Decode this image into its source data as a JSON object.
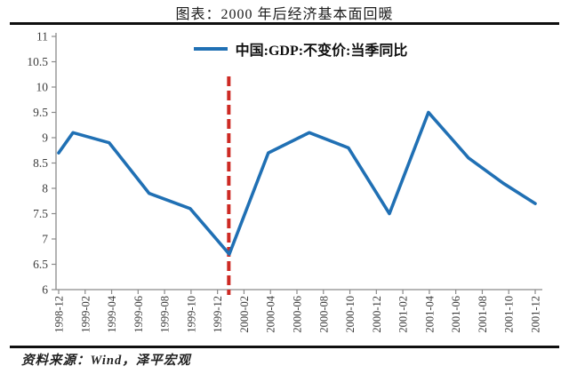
{
  "title": "图表：2000 年后经济基本面回暖",
  "legend": {
    "label": "中国:GDP:不变价:当季同比"
  },
  "source": "资料来源：Wind，泽平宏观",
  "colors": {
    "series_blue": "#2070B4",
    "annotation_red": "#CD2A24",
    "axis_gray": "#8a8a8a",
    "tick_text": "#3d3d3d",
    "rule_black": "#0f0f0f"
  },
  "chart_data": {
    "type": "line",
    "title": "图表：2000 年后经济基本面回暖",
    "xlabel": "",
    "ylabel": "",
    "ylim": [
      6,
      11
    ],
    "grid": false,
    "legend_position": "top-center",
    "y_tick_labels": [
      "11",
      "10.5",
      "10",
      "9.5",
      "9",
      "8.5",
      "8",
      "7.5",
      "7",
      "6.5",
      "6"
    ],
    "x_tick_labels": [
      "1998-12",
      "1999-02",
      "1999-04",
      "1999-06",
      "1999-08",
      "1999-10",
      "1999-12",
      "2000-02",
      "2000-04",
      "2000-06",
      "2000-08",
      "2000-10",
      "2000-12",
      "2001-02",
      "2001-04",
      "2001-06",
      "2001-08",
      "2001-10",
      "2001-12"
    ],
    "series": [
      {
        "name": "中国:GDP:不变价:当季同比",
        "color": "#2070B4",
        "points": [
          {
            "date": "",
            "value": 8.7,
            "f": 0.0
          },
          {
            "date": "1998-12",
            "value": 9.1,
            "f": 0.03
          },
          {
            "date": "1999-03",
            "value": 8.9,
            "f": 0.106
          },
          {
            "date": "1999-06",
            "value": 7.9,
            "f": 0.19
          },
          {
            "date": "1999-09",
            "value": 7.6,
            "f": 0.276
          },
          {
            "date": "1999-12",
            "value": 6.7,
            "f": 0.358
          },
          {
            "date": "2000-03",
            "value": 8.7,
            "f": 0.44
          },
          {
            "date": "2000-06",
            "value": 9.1,
            "f": 0.526
          },
          {
            "date": "2000-09",
            "value": 8.8,
            "f": 0.608
          },
          {
            "date": "2000-12",
            "value": 7.5,
            "f": 0.694
          },
          {
            "date": "2001-03",
            "value": 9.5,
            "f": 0.776
          },
          {
            "date": "2001-06",
            "value": 8.6,
            "f": 0.86
          },
          {
            "date": "2001-09",
            "value": 8.1,
            "f": 0.933
          },
          {
            "date": "2001-12",
            "value": 7.7,
            "f": 1.0
          }
        ]
      }
    ],
    "annotation_line": {
      "orientation": "vertical",
      "f": 0.357,
      "style": "dashed",
      "color": "#CD2A24"
    }
  }
}
